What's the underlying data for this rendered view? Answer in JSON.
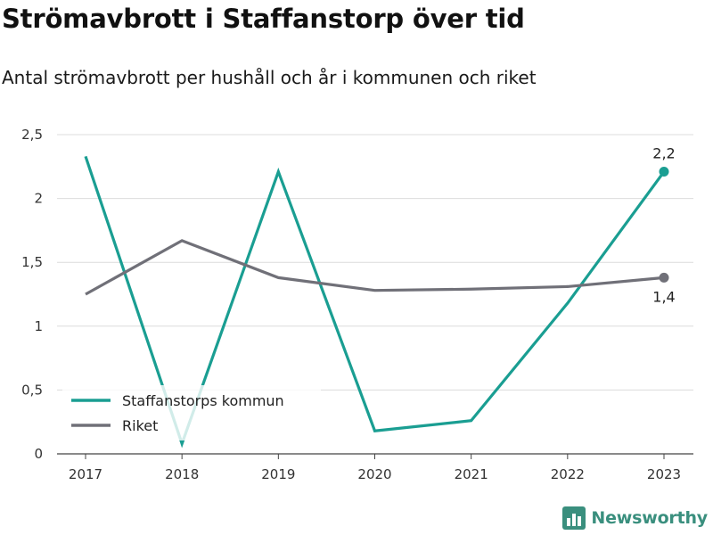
{
  "header": {
    "title": "Strömavbrott i Staffanstorp över tid",
    "subtitle": "Antal strömavbrott per hushåll och år i kommunen och riket"
  },
  "brand": {
    "name": "Newsworthy",
    "icon": "bar-chart-logo-icon",
    "color": "#3a8f7e"
  },
  "chart_data": {
    "type": "line",
    "x": [
      "2017",
      "2018",
      "2019",
      "2020",
      "2021",
      "2022",
      "2023"
    ],
    "series": [
      {
        "name": "Staffanstorps kommun",
        "color": "#1a9e92",
        "values": [
          2.33,
          0.08,
          2.21,
          0.18,
          0.26,
          1.18,
          2.21
        ],
        "end_label": "2,2"
      },
      {
        "name": "Riket",
        "color": "#707078",
        "values": [
          1.25,
          1.67,
          1.38,
          1.28,
          1.29,
          1.31,
          1.38
        ],
        "end_label": "1,4"
      }
    ],
    "yticks": [
      0,
      0.5,
      1,
      1.5,
      2,
      2.5
    ],
    "ytick_labels": [
      "0",
      "0,5",
      "1",
      "1,5",
      "2",
      "2,5"
    ],
    "ylim": [
      0,
      2.5
    ],
    "grid": true,
    "legend": "bottom-left"
  }
}
